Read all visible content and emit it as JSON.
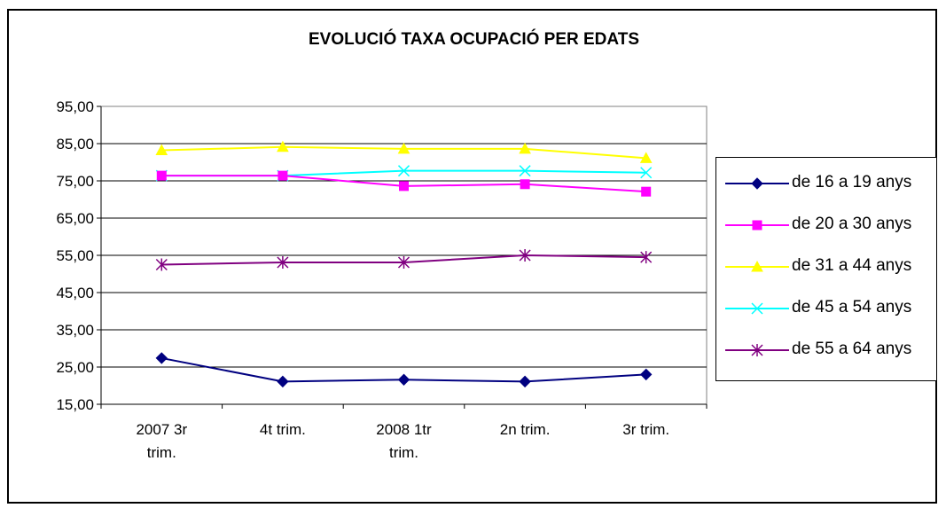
{
  "chart_data": {
    "type": "line",
    "title": "EVOLUCIÓ TAXA OCUPACIÓ PER EDATS",
    "categories": [
      [
        "2007  3r",
        "trim."
      ],
      [
        "4t trim."
      ],
      [
        "2008  1tr",
        "trim."
      ],
      [
        "2n trim."
      ],
      [
        "3r trim."
      ]
    ],
    "ylim": [
      15,
      95
    ],
    "yticks": [
      "95,00",
      "85,00",
      "75,00",
      "65,00",
      "55,00",
      "45,00",
      "35,00",
      "25,00",
      "15,00"
    ],
    "grid": true,
    "legend_position": "right",
    "series": [
      {
        "name": "de 16 a 19 anys",
        "color": "#000080",
        "marker": "diamond",
        "values": [
          27.4,
          21.1,
          21.6,
          21.1,
          23.0
        ]
      },
      {
        "name": "de 20 a 30 anys",
        "color": "#ff00ff",
        "marker": "square",
        "values": [
          76.4,
          76.4,
          73.6,
          74.1,
          72.1
        ]
      },
      {
        "name": "de 31 a 44 anys",
        "color": "#ffff00",
        "marker": "triangle",
        "values": [
          83.2,
          84.1,
          83.6,
          83.6,
          81.1
        ]
      },
      {
        "name": "de 45 a 54 anys",
        "color": "#00ffff",
        "marker": "x",
        "values": [
          76.4,
          76.4,
          77.7,
          77.7,
          77.2
        ]
      },
      {
        "name": "de 55 a 64 anys",
        "color": "#800080",
        "marker": "star",
        "values": [
          52.5,
          53.1,
          53.1,
          55.0,
          54.5
        ]
      }
    ]
  }
}
